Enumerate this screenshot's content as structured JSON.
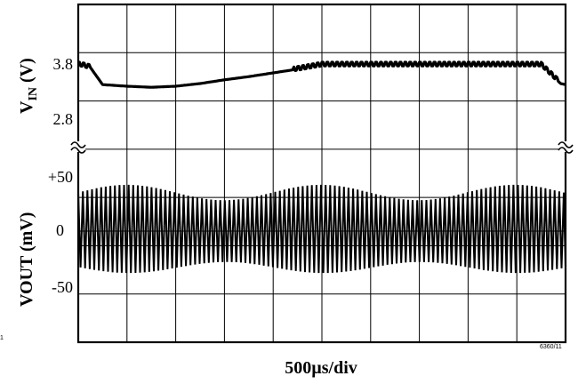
{
  "chart_data": [
    {
      "type": "line",
      "title": "",
      "ylabel_main": "V",
      "ylabel_sub": "IN",
      "ylabel_unit": " (V)",
      "xlabel": "500µs/div",
      "yticks": [
        {
          "label": "3.8",
          "value": 3.8
        },
        {
          "label": "2.8",
          "value": 2.8
        }
      ],
      "series": [
        {
          "x": [
            0.0,
            0.05,
            0.25,
            0.5,
            1.0,
            1.5,
            2.0,
            2.5,
            3.0,
            3.5,
            4.0,
            4.5,
            5.0,
            5.5,
            6.0,
            6.5,
            7.0,
            7.5,
            8.0,
            8.5,
            9.0,
            9.5,
            9.9,
            10.0
          ],
          "y": [
            3.8,
            3.8,
            3.75,
            3.43,
            3.4,
            3.38,
            3.4,
            3.45,
            3.52,
            3.58,
            3.65,
            3.72,
            3.8,
            3.8,
            3.8,
            3.8,
            3.8,
            3.8,
            3.8,
            3.8,
            3.8,
            3.8,
            3.45,
            3.43
          ]
        }
      ]
    },
    {
      "type": "line",
      "title": "",
      "ylabel": "VOUT (mV)",
      "xlabel": "500µs/div",
      "yticks": [
        {
          "label": "+50",
          "value": 50
        },
        {
          "label": "0",
          "value": 0
        },
        {
          "label": "-50",
          "value": -50
        }
      ],
      "series": [
        {
          "description_free": true,
          "ripple_period_div": 0.094,
          "peak_mv_range": [
            28,
            42
          ],
          "trough_mv_range": [
            -38,
            -28
          ]
        }
      ]
    }
  ],
  "labels": {
    "xaxis": "500µs/div",
    "figure_id": "6360/11",
    "left_fragment": "1"
  }
}
